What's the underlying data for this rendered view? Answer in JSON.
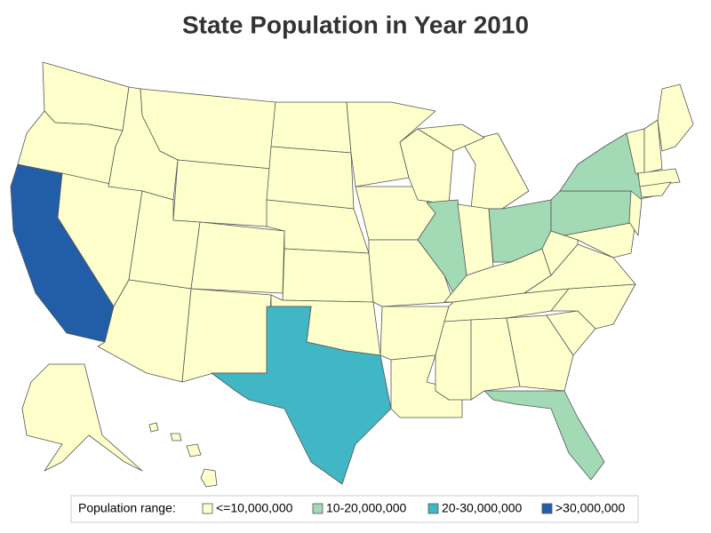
{
  "chart_data": {
    "type": "choropleth",
    "title": "State Population in Year 2010",
    "legend_title": "Population range:",
    "bins": [
      {
        "label": "<=10,000,000",
        "color": "#ffffcc"
      },
      {
        "label": "10-20,000,000",
        "color": "#a1dab4"
      },
      {
        "label": "20-30,000,000",
        "color": "#41b6c4"
      },
      {
        "label": ">30,000,000",
        "color": "#225ea8"
      }
    ],
    "legend_position": "bottom"
  }
}
